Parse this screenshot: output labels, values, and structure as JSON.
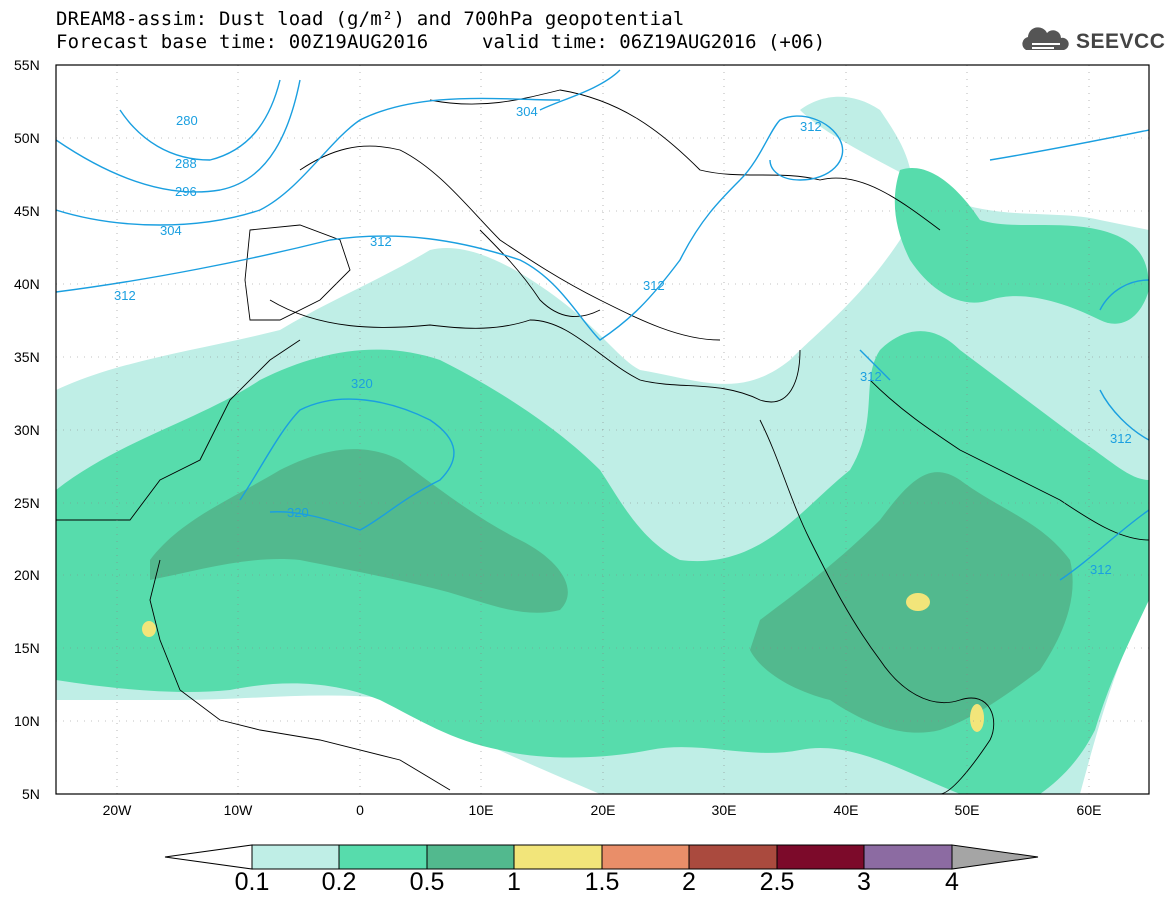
{
  "header": {
    "title_line1": "DREAM8-assim: Dust load (g/m²) and 700hPa geopotential",
    "title_line2": "Forecast base time: 00Z19AUG2016",
    "valid_time": "valid time: 06Z19AUG2016 (+06)",
    "logo_text": "SEEVCCC",
    "logo_icon": "cloud-icon"
  },
  "map": {
    "region": "North Africa, Europe, Middle East",
    "lat_range": [
      5,
      55
    ],
    "lon_range": [
      -25,
      65
    ],
    "lat_labels": [
      "55N",
      "50N",
      "45N",
      "40N",
      "35N",
      "30N",
      "25N",
      "20N",
      "15N",
      "10N",
      "5N"
    ],
    "lon_labels": [
      "20W",
      "10W",
      "0",
      "10E",
      "20E",
      "30E",
      "40E",
      "50E",
      "60E"
    ],
    "contour_labels": [
      "280",
      "288",
      "296",
      "304",
      "312",
      "304",
      "312",
      "312",
      "312",
      "320",
      "320",
      "312",
      "312",
      "312"
    ],
    "colors": {
      "c01": "#bfeee6",
      "c02": "#57dcac",
      "c05": "#52b98e",
      "c1": "#f2e57a",
      "contour": "#1a9fe0"
    }
  },
  "legend": {
    "labels": [
      "0.1",
      "0.2",
      "0.5",
      "1",
      "1.5",
      "2",
      "2.5",
      "3",
      "4"
    ],
    "colors": [
      "#ffffff",
      "#bfeee6",
      "#57dcac",
      "#52b98e",
      "#f2e57a",
      "#e98e69",
      "#aa4a3e",
      "#7c0a2a",
      "#8c6ba2",
      "#a5a5a5"
    ]
  }
}
